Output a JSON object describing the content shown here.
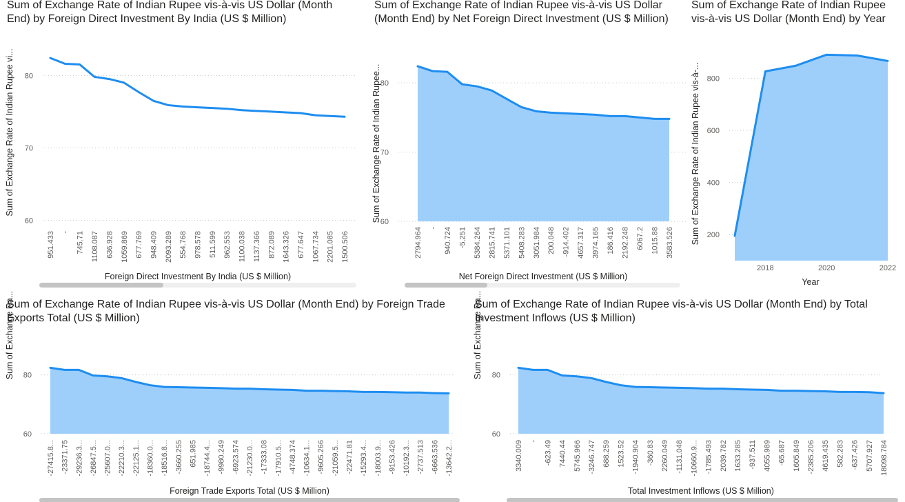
{
  "colors": {
    "line": "#1e8df0",
    "area": "#9ecffb"
  },
  "visuals": [
    {
      "id": "v1",
      "title": "Sum of Exchange Rate of Indian Rupee vis-à-vis US Dollar (Month End) by Foreign Direct Investment By India (US $ Million)",
      "ylabel": "Sum of Exchange Rate of Indian Rupee vi...",
      "xlabel": "Foreign Direct Investment By India (US $ Million)"
    },
    {
      "id": "v2",
      "title": "Sum of Exchange Rate of Indian Rupee vis-à-vis US Dollar (Month End) by Net Foreign Direct Investment (US $ Million)",
      "ylabel": "Sum of Exchange Rate of Indian Rupee...",
      "xlabel": "Net Foreign Direct Investment (US $ Million)"
    },
    {
      "id": "v3",
      "title": "Sum of Exchange Rate of Indian Rupee vis-à-vis US Dollar (Month End) by Year",
      "ylabel": "Sum of Exchange Rate of Indian Rupee vis-à-...",
      "xlabel": "Year"
    },
    {
      "id": "v4",
      "title": "Sum of Exchange Rate of Indian Rupee vis-à-vis US Dollar (Month End) by Foreign Trade Exports Total (US $ Million)",
      "ylabel": "Sum of Exchange Ra...",
      "xlabel": "Foreign Trade Exports Total (US $ Million)"
    },
    {
      "id": "v5",
      "title": "Sum of Exchange Rate of Indian Rupee vis-à-vis US Dollar (Month End) by Total Investment Inflows (US $ Million)",
      "ylabel": "Sum of Exchange Ra...",
      "xlabel": "Total Investment Inflows (US $ Million)"
    }
  ],
  "chart_data": [
    {
      "type": "line",
      "categories": [
        "951.433",
        "-",
        "745.71",
        "1108.087",
        "636.928",
        "1059.869",
        "677.769",
        "948.409",
        "2093.289",
        "554.768",
        "978.578",
        "511.599",
        "962.553",
        "1100.038",
        "1137.366",
        "872.089",
        "1643.326",
        "677.647",
        "1067.734",
        "2201.085",
        "1500.506"
      ],
      "values": [
        82.4,
        81.6,
        81.5,
        79.8,
        79.5,
        79.0,
        77.7,
        76.5,
        75.9,
        75.7,
        75.6,
        75.5,
        75.4,
        75.2,
        75.1,
        75.0,
        74.9,
        74.8,
        74.5,
        74.4,
        74.3
      ],
      "yticks": [
        60,
        70,
        80
      ],
      "ylim": [
        59.3,
        84.5
      ],
      "grid": true
    },
    {
      "type": "area",
      "categories": [
        "2794.964",
        "-",
        "940.724",
        "-5.251",
        "5384.264",
        "2815.741",
        "5371.101",
        "5408.283",
        "3051.984",
        "200.048",
        "-914.402",
        "4657.317",
        "3974.165",
        "186.416",
        "2192.248",
        "6067.2",
        "1015.88",
        "3583.526"
      ],
      "values": [
        82.4,
        81.7,
        81.6,
        79.8,
        79.5,
        78.9,
        77.7,
        76.5,
        75.9,
        75.7,
        75.6,
        75.5,
        75.4,
        75.2,
        75.2,
        75.0,
        74.8,
        74.8
      ],
      "yticks": [
        60,
        70,
        80
      ],
      "ylim": [
        60,
        84
      ],
      "grid": true
    },
    {
      "type": "area",
      "categories": [
        "2017",
        "2018",
        "2019",
        "2020",
        "2021",
        "2022"
      ],
      "values": [
        195,
        826,
        848,
        890,
        887,
        866
      ],
      "yticks": [
        200,
        400,
        600,
        800
      ],
      "xticks": [
        "2018",
        "2020",
        "2022"
      ],
      "ylim": [
        100,
        920
      ],
      "grid": true
    },
    {
      "type": "area",
      "categories": [
        "-27415.8...",
        "-23371.75",
        "-29236.3...",
        "-26847.5...",
        "-25607.0...",
        "-22210.3...",
        "-22125.1...",
        "-18360.0...",
        "-18516.8...",
        "-3660.255",
        "651.985",
        "-18744.4...",
        "-9980.249",
        "-6923.574",
        "-21230.0...",
        "-17333.08",
        "-17910.5...",
        "-4748.374",
        "-10634.1...",
        "-9605.266",
        "-21059.5...",
        "-22471.81",
        "-15293.4...",
        "-18003.9...",
        "-9153.426",
        "-10192.3...",
        "-2737.513",
        "-6663.536",
        "-13642.2..."
      ],
      "values": [
        82.4,
        81.7,
        81.7,
        79.8,
        79.5,
        78.9,
        77.6,
        76.5,
        75.9,
        75.8,
        75.7,
        75.6,
        75.5,
        75.3,
        75.3,
        75.1,
        75.0,
        74.9,
        74.6,
        74.6,
        74.5,
        74.4,
        74.2,
        74.2,
        74.1,
        74.0,
        74.0,
        73.8,
        73.7
      ],
      "yticks": [
        60,
        80
      ],
      "ylim": [
        60,
        86
      ],
      "grid": true
    },
    {
      "type": "area",
      "categories": [
        "3340.009",
        "-",
        "-623.49",
        "7440.44",
        "5745.966",
        "-3246.747",
        "688.259",
        "1523.52",
        "-1940.904",
        "-360.83",
        "2260.049",
        "-1131.048",
        "-10660.9...",
        "-1785.493",
        "2039.782",
        "1633.285",
        "-937.511",
        "4055.989",
        "-65.687",
        "1605.849",
        "-2385.206",
        "4619.435",
        "582.283",
        "-637.426",
        "5707.927",
        "18098.784"
      ],
      "values": [
        82.4,
        81.7,
        81.7,
        79.8,
        79.5,
        78.9,
        77.6,
        76.5,
        75.9,
        75.8,
        75.7,
        75.6,
        75.5,
        75.3,
        75.3,
        75.1,
        75.0,
        74.9,
        74.6,
        74.6,
        74.5,
        74.4,
        74.2,
        74.2,
        74.1,
        73.8
      ],
      "yticks": [
        60,
        80
      ],
      "ylim": [
        60,
        86
      ],
      "grid": true
    }
  ]
}
